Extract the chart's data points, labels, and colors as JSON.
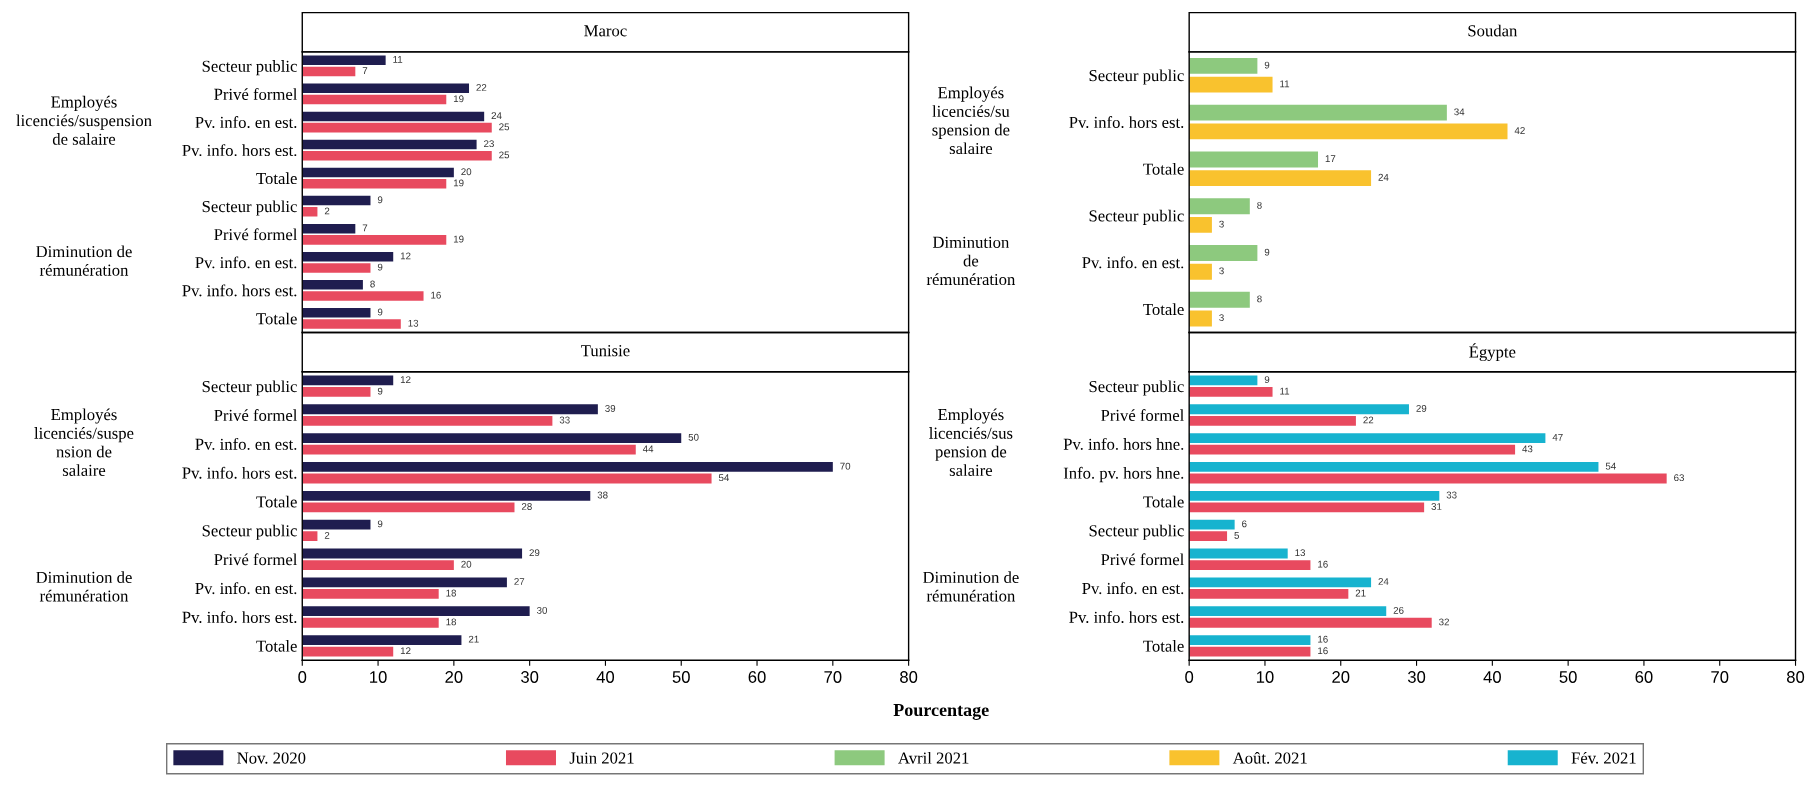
{
  "chart_data": [
    {
      "type": "bar",
      "orientation": "horizontal",
      "title": "Maroc",
      "categories": [
        "Secteur public",
        "Privé formel",
        "Pv. info. en est.",
        "Pv. info. hors est.",
        "Totale",
        "Secteur public",
        "Privé formel",
        "Pv. info. en est.",
        "Pv. info. hors est.",
        "Totale"
      ],
      "series": [
        {
          "name": "Nov. 2020",
          "color": "#1f1d4f",
          "values": [
            11,
            22,
            24,
            23,
            20,
            9,
            7,
            12,
            8,
            9
          ]
        },
        {
          "name": "Juin 2021",
          "color": "#e84a5f",
          "values": [
            7,
            19,
            25,
            25,
            19,
            2,
            19,
            9,
            16,
            13
          ]
        }
      ],
      "annotations": [
        "Employés\nlicenciés/suspension\nde salaire",
        "Diminution de\nrémunération"
      ],
      "xlim": [
        0,
        80
      ],
      "xticks": [
        0,
        10,
        20,
        30,
        40,
        50,
        60,
        70,
        80
      ],
      "tick_labels": "y",
      "data_labels": true,
      "legend": "bottom"
    },
    {
      "type": "bar",
      "orientation": "horizontal",
      "title": "Soudan",
      "categories": [
        "Secteur public",
        "Pv. info. hors est.",
        "Totale",
        "Secteur public",
        "Pv. info. en est.",
        "Totale"
      ],
      "series": [
        {
          "name": "Avril 2021",
          "color": "#8dc97e",
          "values": [
            9,
            34,
            17,
            8,
            9,
            8
          ]
        },
        {
          "name": "Août. 2021",
          "color": "#f9c22e",
          "values": [
            11,
            42,
            24,
            3,
            3,
            3
          ]
        }
      ],
      "annotations": [
        "Employés\nlicenciés/su\nspension de\nsalaire",
        "Diminution\nde\nrémunération"
      ],
      "xlim": [
        0,
        80
      ],
      "xticks": [
        0,
        10,
        20,
        30,
        40,
        50,
        60,
        70,
        80
      ],
      "tick_labels": "y",
      "data_labels": true,
      "legend": "bottom"
    },
    {
      "type": "bar",
      "orientation": "horizontal",
      "title": "Tunisie",
      "xlabel": "Pourcentage",
      "categories": [
        "Secteur public",
        "Privé formel",
        "Pv. info. en est.",
        "Pv. info. hors est.",
        "Totale",
        "Secteur public",
        "Privé formel",
        "Pv. info. en est.",
        "Pv. info. hors est.",
        "Totale"
      ],
      "series": [
        {
          "name": "Nov. 2020",
          "color": "#1f1d4f",
          "values": [
            12,
            39,
            50,
            70,
            38,
            9,
            29,
            27,
            30,
            21
          ]
        },
        {
          "name": "Juin 2021",
          "color": "#e84a5f",
          "values": [
            9,
            33,
            44,
            54,
            28,
            2,
            20,
            18,
            18,
            12
          ]
        }
      ],
      "annotations": [
        "Employés\nlicenciés/suspe\nnsion de\nsalaire",
        "Diminution de\nrémunération"
      ],
      "xlim": [
        0,
        80
      ],
      "xticks": [
        0,
        10,
        20,
        30,
        40,
        50,
        60,
        70,
        80
      ],
      "data_labels": true,
      "legend": "bottom"
    },
    {
      "type": "bar",
      "orientation": "horizontal",
      "title": "Égypte",
      "categories": [
        "Secteur public",
        "Privé formel",
        "Pv. info. hors hne.",
        "Info. pv. hors hne.",
        "Totale",
        "Secteur public",
        "Privé formel",
        "Pv. info. en est.",
        "Pv. info. hors est.",
        "Totale"
      ],
      "series": [
        {
          "name": "Fév. 2021",
          "color": "#17b3cf",
          "values": [
            9,
            29,
            47,
            54,
            33,
            6,
            13,
            24,
            26,
            16
          ]
        },
        {
          "name": "Juin 2021",
          "color": "#e84a5f",
          "values": [
            11,
            22,
            43,
            63,
            31,
            5,
            16,
            21,
            32,
            16
          ]
        }
      ],
      "annotations": [
        "Employés\nlicenciés/sus\npension de\nsalaire",
        "Diminution de\nrémunération"
      ],
      "xlim": [
        0,
        80
      ],
      "xticks": [
        0,
        10,
        20,
        30,
        40,
        50,
        60,
        70,
        80
      ],
      "data_labels": true,
      "legend": "bottom"
    }
  ]
}
